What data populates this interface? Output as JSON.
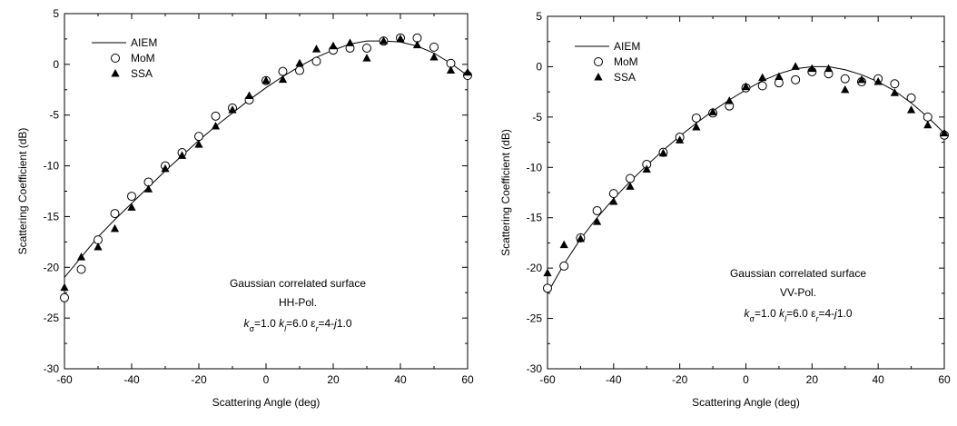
{
  "chart_data": [
    {
      "type": "line",
      "xlabel": "Scattering Angle (deg)",
      "ylabel": "Scattering Coefficient (dB)",
      "xlim": [
        -60,
        60
      ],
      "ylim": [
        -30,
        5
      ],
      "xticks": [
        "-60",
        "-40",
        "-20",
        "0",
        "20",
        "40",
        "60"
      ],
      "yticks": [
        "5",
        "0",
        "-5",
        "-10",
        "-15",
        "-20",
        "-25",
        "-30"
      ],
      "legend": {
        "position": "top-left",
        "entries": [
          "AIEM",
          "MoM",
          "SSA"
        ]
      },
      "annotation": {
        "line1": "Gaussian correlated surface",
        "line2": "HH-Pol.",
        "param_k": "k",
        "param_sigma_sub": "σ",
        "param_eq1": "=1.0 ",
        "param_k2": "k",
        "param_l_sub": "l",
        "param_eq2": "=6.0 ε",
        "param_r_sub": "r",
        "param_eq3": "=4-",
        "param_j": "j",
        "param_end": "1.0"
      },
      "series": [
        {
          "name": "AIEM",
          "style": "line",
          "x": [
            -60,
            -55,
            -50,
            -45,
            -40,
            -35,
            -30,
            -25,
            -20,
            -15,
            -10,
            -5,
            0,
            5,
            10,
            15,
            20,
            25,
            30,
            35,
            40,
            45,
            50,
            55,
            60
          ],
          "y": [
            -21,
            -19,
            -17,
            -15.3,
            -13.7,
            -12.1,
            -10.5,
            -9.0,
            -7.5,
            -6.1,
            -4.8,
            -3.5,
            -2.3,
            -1.2,
            -0.2,
            0.7,
            1.4,
            2.0,
            2.3,
            2.3,
            2.2,
            1.8,
            1.1,
            0.1,
            -1.1
          ]
        },
        {
          "name": "MoM",
          "style": "open-circle",
          "x": [
            -60,
            -55,
            -50,
            -45,
            -40,
            -35,
            -30,
            -25,
            -20,
            -15,
            -10,
            -5,
            0,
            5,
            10,
            15,
            20,
            25,
            30,
            35,
            40,
            45,
            50,
            55,
            60
          ],
          "y": [
            -23,
            -20.2,
            -17.3,
            -14.7,
            -13,
            -11.6,
            -10,
            -8.7,
            -7.1,
            -5.1,
            -4.3,
            -3.5,
            -1.6,
            -0.7,
            -0.6,
            0.3,
            1.4,
            1.6,
            1.6,
            2.3,
            2.6,
            2.6,
            1.7,
            0.1,
            -1.1
          ]
        },
        {
          "name": "SSA",
          "style": "filled-triangle",
          "x": [
            -60,
            -55,
            -50,
            -45,
            -40,
            -35,
            -30,
            -25,
            -20,
            -15,
            -10,
            -5,
            0,
            5,
            10,
            15,
            20,
            25,
            30,
            35,
            40,
            45,
            50,
            55,
            60
          ],
          "y": [
            -22,
            -19,
            -18,
            -16.2,
            -14.1,
            -12.3,
            -10.3,
            -9,
            -7.9,
            -6.1,
            -4.5,
            -3.1,
            -1.6,
            -1.5,
            0.1,
            1.5,
            1.8,
            2.1,
            0.6,
            2.3,
            2.5,
            1.9,
            0.7,
            -0.6,
            -0.8
          ]
        }
      ]
    },
    {
      "type": "line",
      "xlabel": "Scattering Angle (deg)",
      "ylabel": "Scattering Coefficient (dB)",
      "xlim": [
        -60,
        60
      ],
      "ylim": [
        -30,
        5
      ],
      "xticks": [
        "-60",
        "-40",
        "-20",
        "0",
        "20",
        "40",
        "60"
      ],
      "yticks": [
        "5",
        "0",
        "-5",
        "-10",
        "-15",
        "-20",
        "-25",
        "-30"
      ],
      "legend": {
        "position": "top-left",
        "entries": [
          "AIEM",
          "MoM",
          "SSA"
        ]
      },
      "annotation": {
        "line1": "Gaussian correlated surface",
        "line2": "VV-Pol.",
        "param_k": "k",
        "param_sigma_sub": "σ",
        "param_eq1": "=1.0 ",
        "param_k2": "k",
        "param_l_sub": "l",
        "param_eq2": "=6.0 ε",
        "param_r_sub": "r",
        "param_eq3": "=4-",
        "param_j": "j",
        "param_end": "1.0"
      },
      "series": [
        {
          "name": "AIEM",
          "style": "line",
          "x": [
            -60,
            -55,
            -50,
            -45,
            -40,
            -35,
            -30,
            -25,
            -20,
            -15,
            -10,
            -5,
            0,
            5,
            10,
            15,
            20,
            25,
            30,
            35,
            40,
            45,
            50,
            55,
            60
          ],
          "y": [
            -22.5,
            -19.6,
            -17.1,
            -15,
            -13.1,
            -11.4,
            -9.8,
            -8.3,
            -6.9,
            -5.6,
            -4.4,
            -3.3,
            -2.3,
            -1.4,
            -0.7,
            -0.2,
            0,
            0,
            -0.3,
            -0.8,
            -1.5,
            -2.4,
            -3.6,
            -5,
            -6.6
          ]
        },
        {
          "name": "MoM",
          "style": "open-circle",
          "x": [
            -60,
            -55,
            -50,
            -45,
            -40,
            -35,
            -30,
            -25,
            -20,
            -15,
            -10,
            -5,
            0,
            5,
            10,
            15,
            20,
            25,
            30,
            35,
            40,
            45,
            50,
            55,
            60
          ],
          "y": [
            -22,
            -19.8,
            -17,
            -14.3,
            -12.6,
            -11.1,
            -9.7,
            -8.5,
            -7,
            -5.1,
            -4.6,
            -3.9,
            -2.1,
            -1.9,
            -1.6,
            -1.3,
            -0.5,
            -0.7,
            -1.2,
            -1.5,
            -1.2,
            -1.7,
            -3.1,
            -5,
            -6.8
          ]
        },
        {
          "name": "SSA",
          "style": "filled-triangle",
          "x": [
            -60,
            -55,
            -50,
            -45,
            -40,
            -35,
            -30,
            -25,
            -20,
            -15,
            -10,
            -5,
            0,
            5,
            10,
            15,
            20,
            25,
            30,
            35,
            40,
            45,
            50,
            55,
            60
          ],
          "y": [
            -20.5,
            -17.7,
            -17.1,
            -15.4,
            -13.4,
            -11.9,
            -10.2,
            -8.6,
            -7.3,
            -6,
            -4.5,
            -3.4,
            -2,
            -1.1,
            -1,
            0,
            -0.2,
            -0.2,
            -2.3,
            -1.3,
            -1.5,
            -2.6,
            -4.3,
            -5.8,
            -6.6
          ]
        }
      ]
    }
  ]
}
